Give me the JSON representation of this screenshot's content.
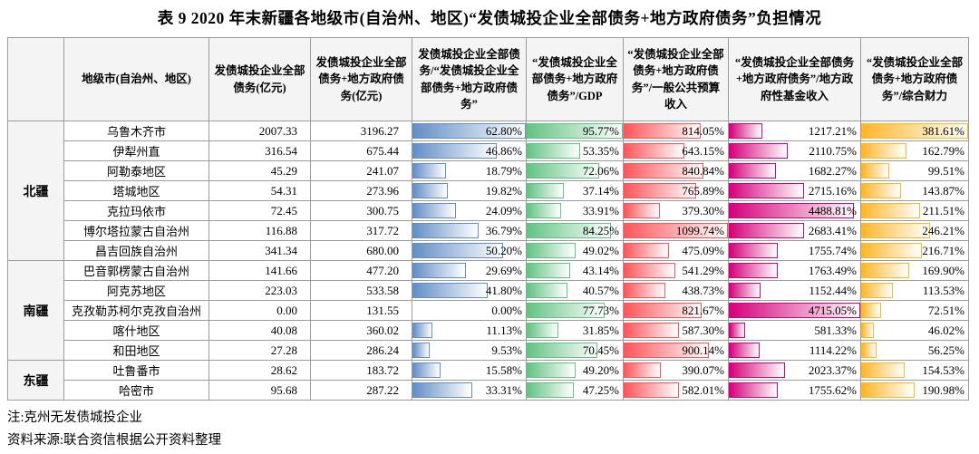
{
  "title": "表 9  2020 年末新疆各地级市(自治州、地区)“发债城投企业全部债务+地方政府债务”负担情况",
  "table": {
    "region_header": "",
    "headers": [
      "地级市(自治州、地区)",
      "发债城投企业全部债务(亿元)",
      "发债城投企业全部债务+地方政府债务(亿元)",
      "发债城投企业全部债务/“发债城投企业全部债务+地方政府债务”",
      "“发债城投企业全部债务+地方政府债务”/GDP",
      "“发债城投企业全部债务+地方政府债务”/一般公共预算收入",
      "“发债城投企业全部债务+地方政府债务”/地方政府性基金收入",
      "“发债城投企业全部债务+地方政府债务”/综合财力"
    ],
    "columns": [
      {
        "type": "number",
        "name": "debt_total"
      },
      {
        "type": "number",
        "name": "debt_plus_gov"
      },
      {
        "type": "bar",
        "name": "pct_of_total",
        "color": "#638EC6"
      },
      {
        "type": "bar",
        "name": "pct_gdp",
        "color": "#63C384"
      },
      {
        "type": "bar",
        "name": "pct_budget_income",
        "color": "#FF555A"
      },
      {
        "type": "bar",
        "name": "pct_fund_income",
        "color": "#D6007B"
      },
      {
        "type": "bar",
        "name": "pct_fiscal_strength",
        "color": "#FFB628"
      }
    ],
    "groups": [
      {
        "region": "北疆",
        "rows": [
          {
            "name": "乌鲁木齐市",
            "values": [
              2007.33,
              3196.27,
              62.8,
              95.77,
              814.05,
              1217.21,
              381.61
            ]
          },
          {
            "name": "伊犁州直",
            "values": [
              316.54,
              675.44,
              46.86,
              53.35,
              643.15,
              2110.75,
              162.79
            ]
          },
          {
            "name": "阿勒泰地区",
            "values": [
              45.29,
              241.07,
              18.79,
              72.06,
              840.84,
              1682.27,
              99.51
            ]
          },
          {
            "name": "塔城地区",
            "values": [
              54.31,
              273.96,
              19.82,
              37.14,
              765.89,
              2715.16,
              143.87
            ]
          },
          {
            "name": "克拉玛依市",
            "values": [
              72.45,
              300.75,
              24.09,
              33.91,
              379.3,
              4488.81,
              211.51
            ]
          },
          {
            "name": "博尔塔拉蒙古自治州",
            "values": [
              116.88,
              317.72,
              36.79,
              84.25,
              1099.74,
              2683.41,
              246.21
            ]
          },
          {
            "name": "昌吉回族自治州",
            "values": [
              341.34,
              680.0,
              50.2,
              49.02,
              475.09,
              1755.74,
              216.71
            ]
          }
        ]
      },
      {
        "region": "南疆",
        "rows": [
          {
            "name": "巴音郭楞蒙古自治州",
            "values": [
              141.66,
              477.2,
              29.69,
              43.14,
              541.29,
              1763.49,
              169.9
            ]
          },
          {
            "name": "阿克苏地区",
            "values": [
              223.03,
              533.58,
              41.8,
              40.57,
              438.73,
              1152.44,
              113.53
            ]
          },
          {
            "name": "克孜勒苏柯尔克孜自治州",
            "values": [
              0.0,
              131.55,
              0.0,
              77.73,
              821.67,
              4715.05,
              72.51
            ]
          },
          {
            "name": "喀什地区",
            "values": [
              40.08,
              360.02,
              11.13,
              31.85,
              587.3,
              581.33,
              46.02
            ]
          },
          {
            "name": "和田地区",
            "values": [
              27.28,
              286.24,
              9.53,
              70.45,
              900.14,
              1114.22,
              56.25
            ]
          }
        ]
      },
      {
        "region": "东疆",
        "rows": [
          {
            "name": "吐鲁番市",
            "values": [
              28.62,
              183.72,
              15.58,
              49.2,
              390.07,
              2023.37,
              154.53
            ]
          },
          {
            "name": "哈密市",
            "values": [
              95.68,
              287.22,
              33.31,
              47.25,
              582.01,
              1755.62,
              190.98
            ]
          }
        ]
      }
    ]
  },
  "notes": [
    "注:克州无发债城投企业",
    "资料来源:联合资信根据公开资料整理"
  ]
}
